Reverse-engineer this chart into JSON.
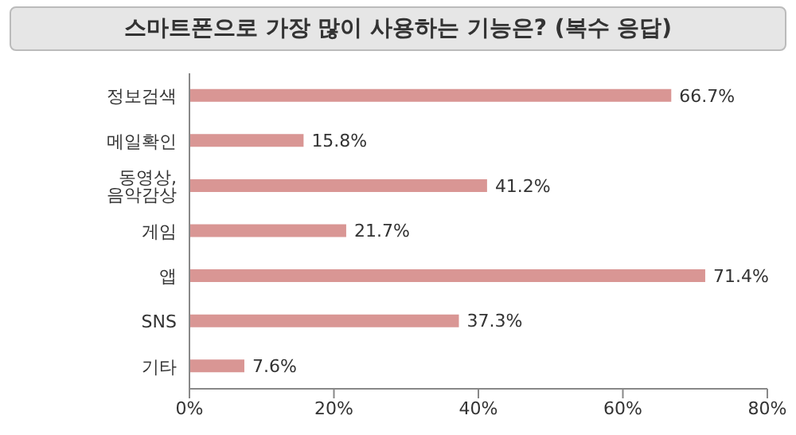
{
  "chart_data": {
    "type": "bar",
    "orientation": "horizontal",
    "title": "스마트폰으로 가장 많이 사용하는 기능은? (복수 응답)",
    "categories": [
      "정보검색",
      "메일확인",
      "동영상, 음악감상",
      "게임",
      "앱",
      "SNS",
      "기타"
    ],
    "values": [
      66.7,
      15.8,
      41.2,
      21.7,
      71.4,
      37.3,
      7.6
    ],
    "value_labels": [
      "66.7%",
      "15.8%",
      "41.2%",
      "21.7%",
      "71.4%",
      "37.3%",
      "7.6%"
    ],
    "color": "#d99694",
    "xlim": [
      0,
      80
    ],
    "xticks": [
      {
        "value": 0,
        "label": "0%"
      },
      {
        "value": 20,
        "label": "20%"
      },
      {
        "value": 40,
        "label": "40%"
      },
      {
        "value": 60,
        "label": "60%"
      },
      {
        "value": 80,
        "label": "80%"
      }
    ],
    "grid": false,
    "legend": false
  }
}
